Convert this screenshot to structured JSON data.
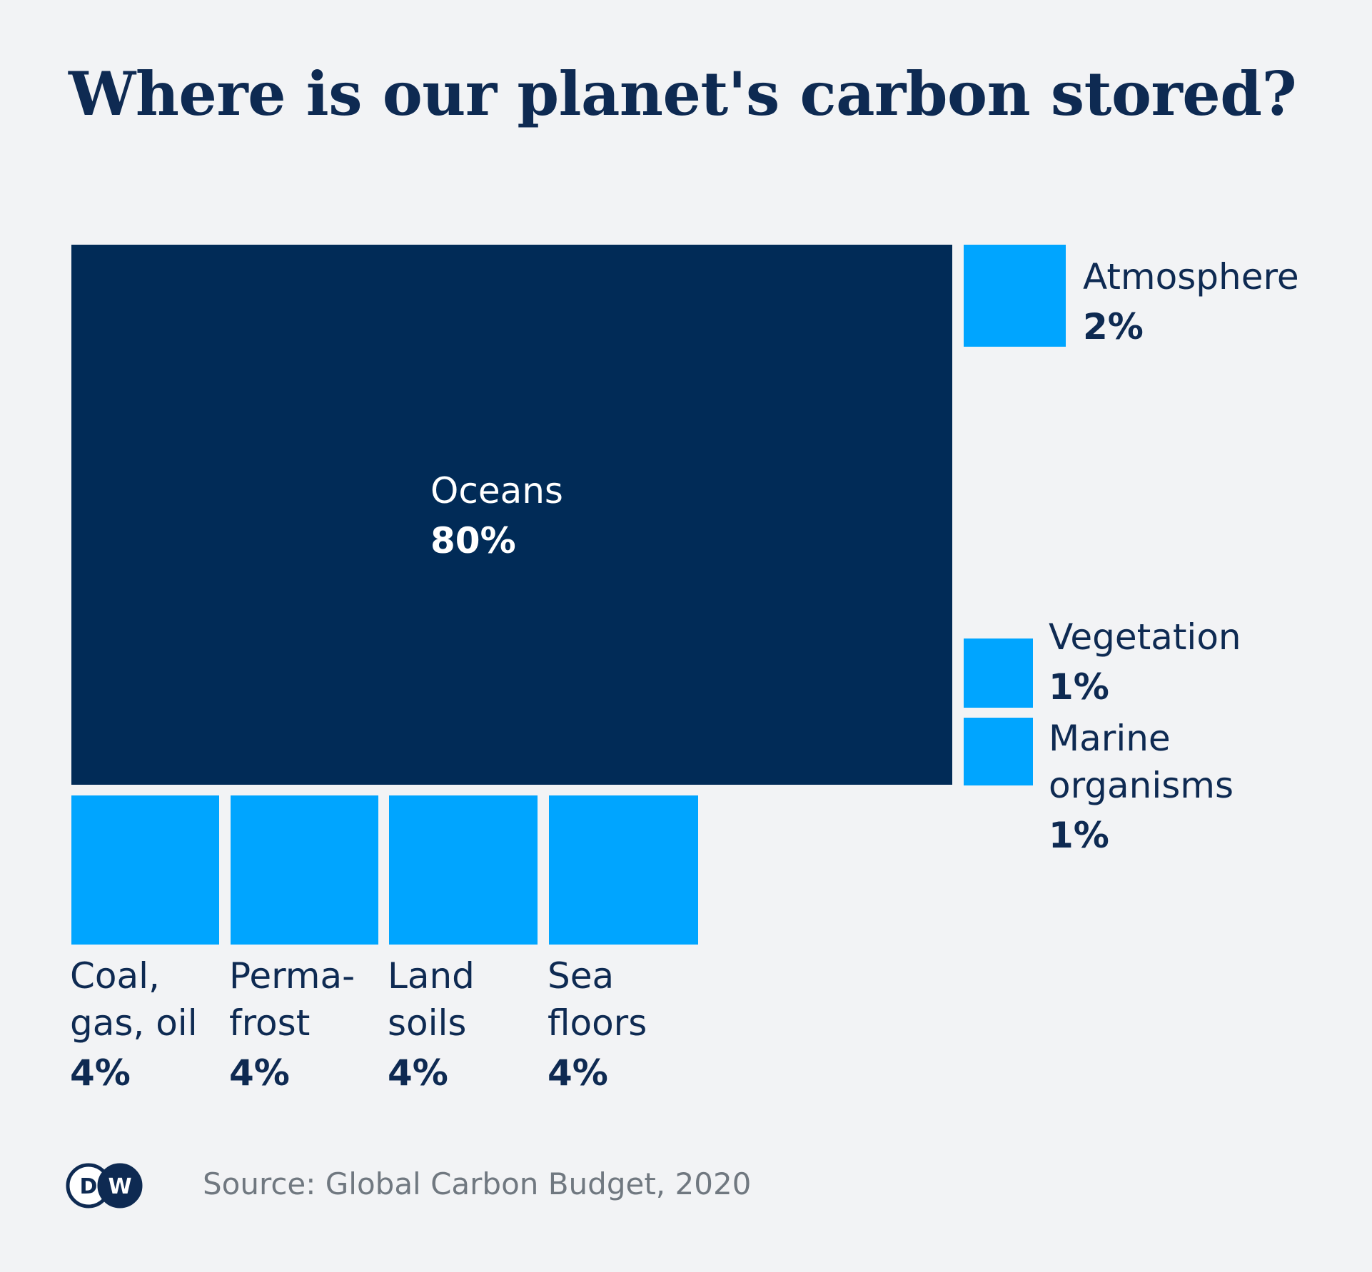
{
  "title": "Where is our planet's carbon stored?",
  "source": "Source: Global Carbon Budget, 2020",
  "logo": {
    "text": "DW",
    "icon": "dw-logo"
  },
  "colors": {
    "background": "#f2f3f5",
    "primary": "#012b57",
    "secondary": "#00a5ff",
    "text": "#0e2a52"
  },
  "chart_data": {
    "type": "treemap",
    "unit": "%",
    "series": [
      {
        "id": "oceans",
        "label_lines": [
          "Oceans"
        ],
        "value": 80,
        "value_label": "80%"
      },
      {
        "id": "atmosphere",
        "label_lines": [
          "Atmosphere"
        ],
        "value": 2,
        "value_label": "2%"
      },
      {
        "id": "vegetation",
        "label_lines": [
          "Vegetation"
        ],
        "value": 1,
        "value_label": "1%"
      },
      {
        "id": "marine",
        "label_lines": [
          "Marine",
          "organisms"
        ],
        "value": 1,
        "value_label": "1%"
      },
      {
        "id": "coal",
        "label_lines": [
          "Coal,",
          "gas, oil"
        ],
        "value": 4,
        "value_label": "4%"
      },
      {
        "id": "permafrost",
        "label_lines": [
          "Perma-",
          "frost"
        ],
        "value": 4,
        "value_label": "4%"
      },
      {
        "id": "soils",
        "label_lines": [
          "Land",
          "soils"
        ],
        "value": 4,
        "value_label": "4%"
      },
      {
        "id": "seafloors",
        "label_lines": [
          "Sea",
          "floors"
        ],
        "value": 4,
        "value_label": "4%"
      }
    ]
  }
}
